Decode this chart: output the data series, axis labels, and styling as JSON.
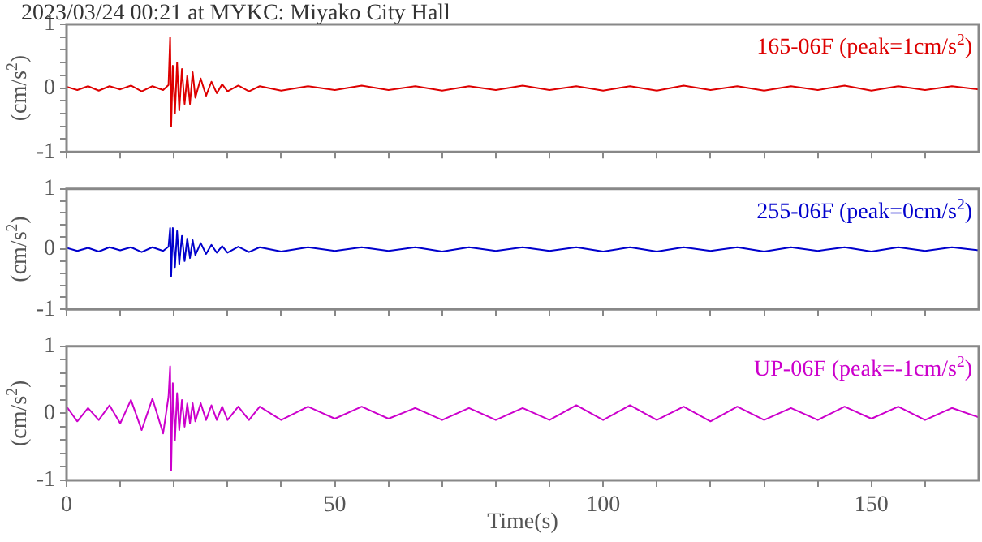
{
  "chart_data": [
    {
      "type": "line",
      "title": "2023/03/24 00:21 at MYKC: Miyako City Hall",
      "ylabel": "(cm/s$^{2}$)",
      "annotations": [
        "165-06F (peak=1cm/s$^{2}$)"
      ],
      "x": [
        0,
        2,
        4,
        6,
        8,
        10,
        12,
        14,
        16,
        18,
        19,
        19.3,
        19.5,
        19.8,
        20.2,
        20.6,
        21,
        21.5,
        22,
        22.5,
        23,
        23.5,
        24,
        25,
        26,
        27,
        28,
        29,
        30,
        32,
        34,
        36,
        40,
        45,
        50,
        55,
        60,
        65,
        70,
        75,
        80,
        85,
        90,
        95,
        100,
        105,
        110,
        115,
        120,
        125,
        130,
        135,
        140,
        145,
        150,
        155,
        160,
        165,
        170
      ],
      "series": [
        {
          "color": "#dd0000",
          "values": [
            0.02,
            -0.03,
            0.03,
            -0.04,
            0.03,
            -0.02,
            0.04,
            -0.05,
            0.03,
            -0.03,
            0.05,
            0.8,
            -0.6,
            0.35,
            -0.4,
            0.4,
            -0.35,
            0.3,
            -0.25,
            0.2,
            -0.25,
            0.25,
            -0.15,
            0.15,
            -0.12,
            0.1,
            -0.08,
            0.06,
            -0.05,
            0.04,
            -0.05,
            0.03,
            -0.04,
            0.03,
            -0.03,
            0.04,
            -0.03,
            0.03,
            -0.04,
            0.03,
            -0.03,
            0.04,
            -0.03,
            0.03,
            -0.04,
            0.03,
            -0.04,
            0.04,
            -0.03,
            0.03,
            -0.04,
            0.03,
            -0.03,
            0.04,
            -0.04,
            0.03,
            -0.03,
            0.03,
            -0.02
          ]
        }
      ],
      "xlim": [
        0,
        170
      ],
      "xticks": [
        0,
        {
          "value": 10,
          "label": null
        },
        {
          "value": 20,
          "label": null
        },
        {
          "value": 30,
          "label": null
        },
        {
          "value": 40,
          "label": null
        },
        50,
        {
          "value": 60,
          "label": null
        },
        {
          "value": 70,
          "label": null
        },
        {
          "value": 80,
          "label": null
        },
        {
          "value": 90,
          "label": null
        },
        100,
        {
          "value": 110,
          "label": null
        },
        {
          "value": 120,
          "label": null
        },
        {
          "value": 130,
          "label": null
        },
        {
          "value": 140,
          "label": null
        },
        150,
        {
          "value": 160,
          "label": null
        }
      ],
      "ylim": [
        -1,
        1
      ],
      "yticks": [
        -1,
        {
          "value": -0.8,
          "label": null
        },
        {
          "value": -0.6,
          "label": null
        },
        {
          "value": -0.4,
          "label": null
        },
        {
          "value": -0.2,
          "label": null
        },
        0,
        {
          "value": 0.2,
          "label": null
        },
        {
          "value": 0.4,
          "label": null
        },
        {
          "value": 0.6,
          "label": null
        },
        {
          "value": 0.8,
          "label": null
        },
        1
      ],
      "grid": false,
      "tick_labels": "y",
      "marker": "none",
      "line_style": "solid"
    },
    {
      "type": "line",
      "ylabel": "(cm/s$^{2}$)",
      "annotations": [
        "255-06F (peak=0cm/s$^{2}$)"
      ],
      "x": [
        0,
        2,
        4,
        6,
        8,
        10,
        12,
        14,
        16,
        18,
        19,
        19.3,
        19.5,
        19.8,
        20.2,
        20.6,
        21,
        21.5,
        22,
        22.5,
        23,
        23.5,
        24,
        25,
        26,
        27,
        28,
        29,
        30,
        32,
        34,
        36,
        40,
        45,
        50,
        55,
        60,
        65,
        70,
        75,
        80,
        85,
        90,
        95,
        100,
        105,
        110,
        115,
        120,
        125,
        130,
        135,
        140,
        145,
        150,
        155,
        160,
        165,
        170
      ],
      "series": [
        {
          "color": "#0000cc",
          "values": [
            0.02,
            -0.03,
            0.02,
            -0.04,
            0.03,
            -0.02,
            0.03,
            -0.05,
            0.03,
            -0.03,
            0.04,
            0.35,
            -0.45,
            0.35,
            -0.3,
            0.3,
            -0.25,
            0.22,
            -0.2,
            0.18,
            -0.15,
            0.15,
            -0.1,
            0.1,
            -0.08,
            0.07,
            -0.06,
            0.05,
            -0.06,
            0.04,
            -0.05,
            0.03,
            -0.04,
            0.03,
            -0.03,
            0.03,
            -0.03,
            0.03,
            -0.04,
            0.03,
            -0.03,
            0.03,
            -0.03,
            0.03,
            -0.04,
            0.03,
            -0.04,
            0.03,
            -0.03,
            0.03,
            -0.04,
            0.03,
            -0.03,
            0.03,
            -0.04,
            0.03,
            -0.03,
            0.03,
            -0.02
          ]
        }
      ],
      "xlim": [
        0,
        170
      ],
      "xticks": [
        0,
        {
          "value": 10,
          "label": null
        },
        {
          "value": 20,
          "label": null
        },
        {
          "value": 30,
          "label": null
        },
        {
          "value": 40,
          "label": null
        },
        50,
        {
          "value": 60,
          "label": null
        },
        {
          "value": 70,
          "label": null
        },
        {
          "value": 80,
          "label": null
        },
        {
          "value": 90,
          "label": null
        },
        100,
        {
          "value": 110,
          "label": null
        },
        {
          "value": 120,
          "label": null
        },
        {
          "value": 130,
          "label": null
        },
        {
          "value": 140,
          "label": null
        },
        150,
        {
          "value": 160,
          "label": null
        }
      ],
      "ylim": [
        -1,
        1
      ],
      "yticks": [
        -1,
        {
          "value": -0.8,
          "label": null
        },
        {
          "value": -0.6,
          "label": null
        },
        {
          "value": -0.4,
          "label": null
        },
        {
          "value": -0.2,
          "label": null
        },
        0,
        {
          "value": 0.2,
          "label": null
        },
        {
          "value": 0.4,
          "label": null
        },
        {
          "value": 0.6,
          "label": null
        },
        {
          "value": 0.8,
          "label": null
        },
        1
      ],
      "grid": false,
      "tick_labels": "y",
      "marker": "none",
      "line_style": "solid"
    },
    {
      "type": "line",
      "xlabel": "Time(s)",
      "ylabel": "(cm/s$^{2}$)",
      "annotations": [
        "UP-06F (peak=-1cm/s$^{2}$)"
      ],
      "x": [
        0,
        2,
        4,
        6,
        8,
        10,
        12,
        14,
        16,
        18,
        19,
        19.3,
        19.5,
        19.8,
        20.2,
        20.6,
        21,
        21.5,
        22,
        22.5,
        23,
        23.5,
        24,
        25,
        26,
        27,
        28,
        29,
        30,
        32,
        34,
        36,
        40,
        45,
        50,
        55,
        60,
        65,
        70,
        75,
        80,
        85,
        90,
        95,
        100,
        105,
        110,
        115,
        120,
        125,
        130,
        135,
        140,
        145,
        150,
        155,
        160,
        165,
        170
      ],
      "series": [
        {
          "color": "#cc00cc",
          "values": [
            0.1,
            -0.12,
            0.08,
            -0.1,
            0.12,
            -0.15,
            0.2,
            -0.25,
            0.22,
            -0.3,
            0.25,
            0.7,
            -0.85,
            0.45,
            -0.4,
            0.3,
            -0.25,
            0.2,
            -0.2,
            0.15,
            -0.15,
            0.15,
            -0.12,
            0.15,
            -0.1,
            0.12,
            -0.1,
            0.1,
            -0.1,
            0.1,
            -0.1,
            0.1,
            -0.1,
            0.1,
            -0.08,
            0.1,
            -0.08,
            0.08,
            -0.1,
            0.08,
            -0.1,
            0.08,
            -0.1,
            0.12,
            -0.1,
            0.12,
            -0.1,
            0.1,
            -0.12,
            0.1,
            -0.1,
            0.08,
            -0.1,
            0.1,
            -0.08,
            0.1,
            -0.1,
            0.08,
            -0.06
          ]
        }
      ],
      "xlim": [
        0,
        170
      ],
      "xticks": [
        0,
        {
          "value": 10,
          "label": null
        },
        {
          "value": 20,
          "label": null
        },
        {
          "value": 30,
          "label": null
        },
        {
          "value": 40,
          "label": null
        },
        50,
        {
          "value": 60,
          "label": null
        },
        {
          "value": 70,
          "label": null
        },
        {
          "value": 80,
          "label": null
        },
        {
          "value": 90,
          "label": null
        },
        100,
        {
          "value": 110,
          "label": null
        },
        {
          "value": 120,
          "label": null
        },
        {
          "value": 130,
          "label": null
        },
        {
          "value": 140,
          "label": null
        },
        150,
        {
          "value": 160,
          "label": null
        }
      ],
      "ylim": [
        -1,
        1
      ],
      "yticks": [
        -1,
        {
          "value": -0.8,
          "label": null
        },
        {
          "value": -0.6,
          "label": null
        },
        {
          "value": -0.4,
          "label": null
        },
        {
          "value": -0.2,
          "label": null
        },
        0,
        {
          "value": 0.2,
          "label": null
        },
        {
          "value": 0.4,
          "label": null
        },
        {
          "value": 0.6,
          "label": null
        },
        {
          "value": 0.8,
          "label": null
        },
        1
      ],
      "grid": false,
      "marker": "none",
      "line_style": "solid"
    }
  ]
}
